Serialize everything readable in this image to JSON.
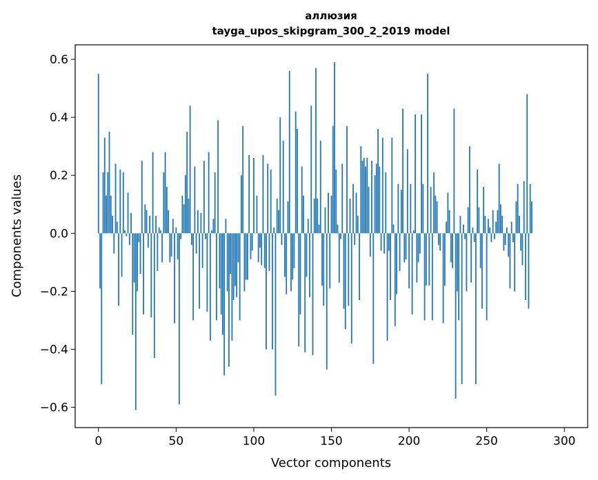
{
  "chart_data": {
    "type": "bar",
    "title": "аллюзия",
    "subtitle": "tayga_upos_skipgram_300_2_2019 model",
    "xlabel": "Vector components",
    "ylabel": "Components values",
    "xlim": [
      -15,
      315
    ],
    "ylim": [
      -0.67,
      0.65
    ],
    "x_ticks": [
      0,
      50,
      100,
      150,
      200,
      250,
      300
    ],
    "y_ticks": [
      -0.6,
      -0.4,
      -0.2,
      0.0,
      0.2,
      0.4,
      0.6
    ],
    "x_tick_labels": [
      "0",
      "50",
      "100",
      "150",
      "200",
      "250",
      "300"
    ],
    "y_tick_labels": [
      "−0.6",
      "−0.4",
      "−0.2",
      "0.0",
      "0.2",
      "0.4",
      "0.6"
    ],
    "grid": false,
    "bar_color": "#1f77b4",
    "values": [
      0.55,
      -0.19,
      -0.52,
      0.21,
      0.33,
      0.13,
      0.21,
      0.35,
      0.13,
      0.06,
      -0.07,
      0.24,
      0.04,
      -0.25,
      0.22,
      -0.15,
      0.21,
      0.01,
      -0.01,
      0.14,
      -0.04,
      0.07,
      -0.35,
      -0.17,
      -0.61,
      -0.2,
      -0.03,
      -0.14,
      0.25,
      -0.28,
      0.1,
      0.08,
      -0.05,
      0.06,
      -0.29,
      0.28,
      -0.43,
      0.06,
      -0.13,
      0.02,
      0.01,
      -0.1,
      0.21,
      0.28,
      0.16,
      0.08,
      -0.1,
      -0.08,
      0.05,
      -0.31,
      0.02,
      -0.09,
      -0.59,
      -0.02,
      0.13,
      0.1,
      0.2,
      0.35,
      0.12,
      0.44,
      -0.04,
      -0.3,
      0.23,
      -0.07,
      0.08,
      -0.26,
      0.07,
      -0.12,
      0.25,
      -0.02,
      -0.27,
      0.28,
      -0.37,
      0.01,
      0.05,
      0.21,
      -0.3,
      0.39,
      -0.19,
      -0.28,
      -0.35,
      -0.49,
      0.05,
      -0.2,
      -0.46,
      -0.14,
      -0.37,
      -0.23,
      -0.18,
      -0.22,
      -0.1,
      -0.3,
      0.2,
      0.37,
      -0.2,
      -0.16,
      -0.16,
      0.27,
      -0.09,
      -0.06,
      0.26,
      0.0,
      0.13,
      -0.1,
      -0.05,
      -0.11,
      0.27,
      -0.12,
      -0.4,
      0.24,
      -0.13,
      0.22,
      -0.4,
      0.02,
      -0.56,
      0.12,
      0.08,
      0.4,
      -0.04,
      0.32,
      -0.15,
      -0.21,
      0.11,
      0.56,
      -0.2,
      -0.16,
      -0.12,
      0.42,
      0.36,
      -0.39,
      -0.28,
      0.23,
      0.13,
      -0.41,
      -0.15,
      0.05,
      -0.22,
      0.44,
      -0.42,
      0.12,
      0.57,
      0.12,
      0.03,
      0.32,
      -0.18,
      -0.25,
      0.09,
      -0.47,
      0.14,
      -0.19,
      0.13,
      0.37,
      0.59,
      0.22,
      0.03,
      -0.17,
      -0.02,
      0.24,
      -0.26,
      -0.33,
      0.37,
      -0.25,
      0.12,
      -0.38,
      0.17,
      -0.04,
      0.14,
      0.06,
      -0.23,
      0.3,
      0.25,
      0.26,
      0.23,
      0.26,
      0.16,
      -0.08,
      0.25,
      -0.45,
      0.2,
      0.24,
      0.36,
      0.23,
      -0.06,
      0.33,
      -0.07,
      0.21,
      -0.37,
      -0.06,
      -0.23,
      0.33,
      0.03,
      -0.32,
      -0.21,
      0.17,
      -0.13,
      0.15,
      0.43,
      -0.1,
      -0.09,
      0.29,
      -0.19,
      0.17,
      -0.28,
      0.01,
      0.41,
      -0.17,
      -0.1,
      -0.07,
      0.41,
      0.17,
      -0.3,
      -0.18,
      0.55,
      -0.18,
      0.16,
      -0.3,
      0.21,
      0.13,
      0.11,
      -0.04,
      -0.06,
      0.0,
      -0.31,
      -0.18,
      0.04,
      0.14,
      0.08,
      -0.1,
      -0.12,
      0.43,
      -0.57,
      -0.2,
      -0.3,
      0.06,
      -0.52,
      0.03,
      -0.02,
      -0.2,
      0.09,
      0.3,
      -0.17,
      0.02,
      -0.03,
      -0.52,
      0.22,
      0.09,
      -0.12,
      -0.26,
      0.16,
      0.06,
      -0.3,
      0.05,
      0.02,
      -0.03,
      0.08,
      -0.02,
      0.04,
      0.08,
      0.24,
      0.1,
      0.06,
      -0.06,
      -0.04,
      0.02,
      -0.08,
      -0.19,
      0.04,
      -0.03,
      -0.2,
      0.11,
      0.17,
      0.06,
      -0.06,
      -0.11,
      0.18,
      -0.23,
      0.48,
      -0.26,
      0.17,
      0.11
    ]
  }
}
